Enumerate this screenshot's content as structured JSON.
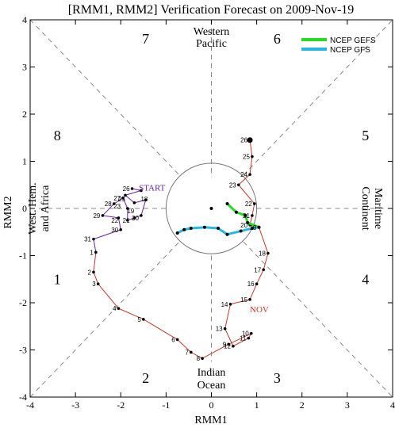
{
  "chart_data": {
    "type": "line",
    "title": "[RMM1, RMM2] Verification Forecast on 2009-Nov-19",
    "xlabel": "RMM1",
    "ylabel": "RMM2",
    "xlim": [
      -4,
      4
    ],
    "ylim": [
      -4,
      4
    ],
    "xticks": [
      "-4",
      "-3",
      "-2",
      "-1",
      "0",
      "1",
      "2",
      "3",
      "4"
    ],
    "yticks": [
      "-4",
      "-3",
      "-2",
      "-1",
      "0",
      "1",
      "2",
      "3",
      "4"
    ],
    "grid": false,
    "unit_circle_radius": 1,
    "phase_numbers": [
      {
        "label": "1",
        "x": -3.4,
        "y": -1.5
      },
      {
        "label": "2",
        "x": -1.45,
        "y": -3.6
      },
      {
        "label": "3",
        "x": 1.45,
        "y": -3.6
      },
      {
        "label": "4",
        "x": 3.4,
        "y": -1.5
      },
      {
        "label": "5",
        "x": 3.4,
        "y": 1.55
      },
      {
        "label": "6",
        "x": 1.45,
        "y": 3.6
      },
      {
        "label": "7",
        "x": -1.45,
        "y": 3.6
      },
      {
        "label": "8",
        "x": -3.4,
        "y": 1.55
      }
    ],
    "region_labels": {
      "top": [
        "Western",
        "Pacific"
      ],
      "bottom": [
        "Indian",
        "Ocean"
      ],
      "left": [
        "West. Hem.",
        "and Africa"
      ],
      "right": [
        "Maritime",
        "Continent"
      ]
    },
    "annotations": [
      {
        "text": "START",
        "x": -1.6,
        "y": 0.38,
        "color": "#6a1fa0"
      },
      {
        "text": "NOV",
        "x": 0.85,
        "y": -2.2,
        "color": "#c0392b"
      }
    ],
    "legend": {
      "placement": "top-right",
      "entries": [
        {
          "name": "NCEP GEFS",
          "color": "#22dd22"
        },
        {
          "name": "NCEP GFS",
          "color": "#22b8e8"
        }
      ]
    },
    "observed_previous_month": {
      "color": "#6a1fa0",
      "points": [
        {
          "day": "26",
          "x": -1.75,
          "y": 0.42
        },
        {
          "day": "27",
          "x": -1.95,
          "y": 0.22
        },
        {
          "day": "28",
          "x": -2.15,
          "y": 0.1
        },
        {
          "day": "29",
          "x": -2.4,
          "y": -0.15
        },
        {
          "day": "30",
          "x": -2.0,
          "y": -0.45
        },
        {
          "day": "31",
          "x": -2.6,
          "y": -0.65
        }
      ],
      "trail": [
        {
          "x": -1.75,
          "y": 0.42
        },
        {
          "x": -1.55,
          "y": 0.38
        },
        {
          "x": -1.9,
          "y": 0.28
        },
        {
          "x": -1.7,
          "y": 0.12
        },
        {
          "x": -1.45,
          "y": 0.18
        },
        {
          "x": -1.55,
          "y": -0.15
        },
        {
          "x": -1.7,
          "y": -0.2
        },
        {
          "x": -1.85,
          "y": -0.25
        },
        {
          "x": -1.85,
          "y": 0.0
        },
        {
          "x": -1.95,
          "y": 0.22
        },
        {
          "x": -2.15,
          "y": 0.1
        },
        {
          "x": -2.4,
          "y": -0.15
        },
        {
          "x": -2.05,
          "y": -0.2
        },
        {
          "x": -2.0,
          "y": -0.45
        },
        {
          "x": -2.6,
          "y": -0.65
        }
      ],
      "extra_labels": [
        {
          "day": "18",
          "x": -1.35,
          "y": 0.2
        },
        {
          "day": "19",
          "x": -1.65,
          "y": -0.05
        },
        {
          "day": "20",
          "x": -1.55,
          "y": -0.2
        },
        {
          "day": "21",
          "x": -1.75,
          "y": -0.25
        },
        {
          "day": "22",
          "x": -2.0,
          "y": -0.25
        },
        {
          "day": "23",
          "x": -1.95,
          "y": 0.05
        },
        {
          "day": "25",
          "x": -1.85,
          "y": 0.2
        }
      ]
    },
    "observed_november": {
      "color": "#c0392b",
      "points": [
        {
          "day": "1",
          "x": -2.55,
          "y": -0.93
        },
        {
          "day": "2",
          "x": -2.6,
          "y": -1.35
        },
        {
          "day": "3",
          "x": -2.5,
          "y": -1.6
        },
        {
          "day": "4",
          "x": -2.05,
          "y": -2.12
        },
        {
          "day": "5",
          "x": -1.5,
          "y": -2.35
        },
        {
          "day": "6",
          "x": -0.75,
          "y": -2.78
        },
        {
          "day": "7",
          "x": -0.45,
          "y": -3.05
        },
        {
          "day": "8",
          "x": -0.2,
          "y": -3.18
        },
        {
          "day": "9",
          "x": 0.38,
          "y": -2.88
        },
        {
          "day": "10",
          "x": 0.88,
          "y": -2.65
        },
        {
          "day": "11",
          "x": 0.82,
          "y": -2.75
        },
        {
          "day": "12",
          "x": 0.48,
          "y": -2.92
        },
        {
          "day": "13",
          "x": 0.3,
          "y": -2.55
        },
        {
          "day": "14",
          "x": 0.42,
          "y": -2.03
        },
        {
          "day": "15",
          "x": 0.85,
          "y": -1.93
        },
        {
          "day": "16",
          "x": 1.0,
          "y": -1.6
        },
        {
          "day": "17",
          "x": 1.15,
          "y": -1.3
        },
        {
          "day": "18",
          "x": 1.25,
          "y": -0.95
        },
        {
          "day": "19",
          "x": 1.05,
          "y": -0.4
        },
        {
          "day": "20",
          "x": 0.85,
          "y": -0.35
        },
        {
          "day": "21",
          "x": 0.9,
          "y": -0.15
        },
        {
          "day": "22",
          "x": 0.95,
          "y": 0.1
        },
        {
          "day": "23",
          "x": 0.6,
          "y": 0.5
        },
        {
          "day": "24",
          "x": 0.85,
          "y": 0.72
        },
        {
          "day": "25",
          "x": 0.9,
          "y": 1.1
        },
        {
          "day": "26",
          "x": 0.85,
          "y": 1.45
        }
      ]
    },
    "series": [
      {
        "name": "NCEP GEFS",
        "color": "#22dd22",
        "points": [
          {
            "x": 0.35,
            "y": 0.1
          },
          {
            "x": 0.55,
            "y": -0.08
          },
          {
            "x": 0.75,
            "y": -0.15
          },
          {
            "x": 0.8,
            "y": -0.3
          },
          {
            "x": 1.05,
            "y": -0.4
          }
        ]
      },
      {
        "name": "NCEP GFS",
        "color": "#22b8e8",
        "points": [
          {
            "x": -0.75,
            "y": -0.52
          },
          {
            "x": -0.6,
            "y": -0.45
          },
          {
            "x": -0.45,
            "y": -0.42
          },
          {
            "x": -0.15,
            "y": -0.4
          },
          {
            "x": 0.15,
            "y": -0.42
          },
          {
            "x": 0.35,
            "y": -0.55
          },
          {
            "x": 0.65,
            "y": -0.48
          },
          {
            "x": 0.9,
            "y": -0.42
          },
          {
            "x": 1.05,
            "y": -0.4
          }
        ]
      }
    ],
    "extra_dots": [
      {
        "x": 0.0,
        "y": 0.0
      }
    ]
  }
}
